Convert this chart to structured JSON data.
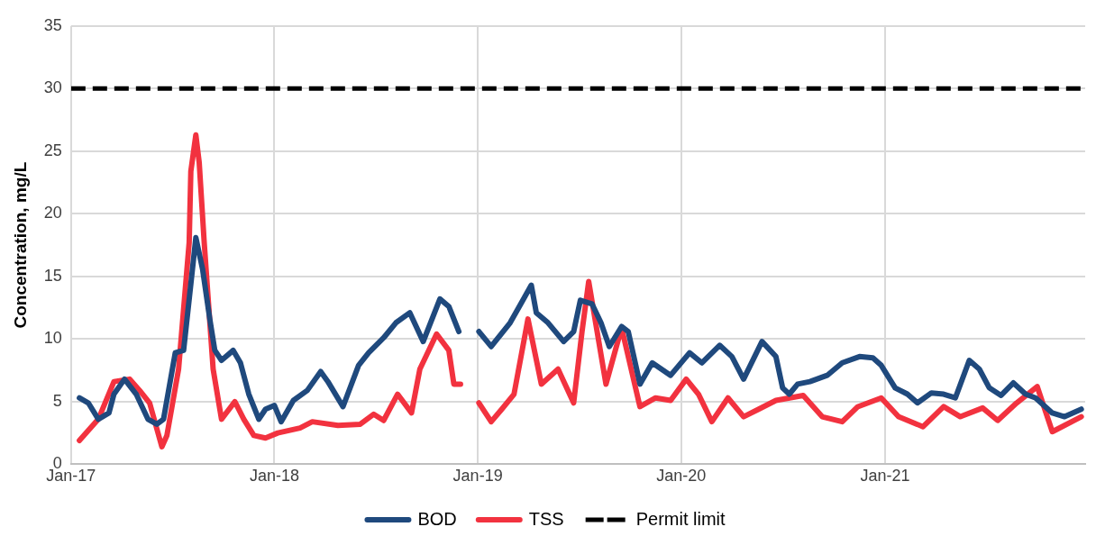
{
  "chart_data": {
    "type": "line",
    "ylabel": "Concentration, mg/L",
    "ylim": [
      0,
      35
    ],
    "yticks": [
      0,
      5,
      10,
      15,
      20,
      25,
      30,
      35
    ],
    "xlim": [
      "2017-01-01",
      "2021-12-26"
    ],
    "xticks": [
      {
        "value": "2017-01-01",
        "label": "Jan-17"
      },
      {
        "value": "2018-01-01",
        "label": "Jan-18"
      },
      {
        "value": "2019-01-01",
        "label": "Jan-19"
      },
      {
        "value": "2020-01-01",
        "label": "Jan-20"
      },
      {
        "value": "2021-01-01",
        "label": "Jan-21"
      }
    ],
    "grid": true,
    "legend": "bottom",
    "series": [
      {
        "name": "BOD",
        "color": "#1f497d",
        "x": [
          "2017-01-16",
          "2017-02-01",
          "2017-02-19",
          "2017-03-10",
          "2017-03-19",
          "2017-04-07",
          "2017-04-28",
          "2017-05-19",
          "2017-06-04",
          "2017-06-16",
          "2017-07-07",
          "2017-07-22",
          "2017-08-04",
          "2017-08-13",
          "2017-08-25",
          "2017-09-07",
          "2017-09-16",
          "2017-09-28",
          "2017-10-19",
          "2017-11-01",
          "2017-11-16",
          "2017-12-04",
          "2017-12-16",
          "2018-01-01",
          "2018-01-13",
          "2018-02-04",
          "2018-03-01",
          "2018-03-25",
          "2018-04-07",
          "2018-05-04",
          "2018-06-01",
          "2018-06-19",
          "2018-07-16",
          "2018-08-07",
          "2018-09-01",
          "2018-09-25",
          "2018-10-25",
          "2018-11-10",
          "2018-11-28",
          "2018-12-15",
          "2019-01-03",
          "2019-01-25",
          "2019-02-28",
          "2019-03-19",
          "2019-04-07",
          "2019-04-16",
          "2019-05-07",
          "2019-06-04",
          "2019-06-22",
          "2019-07-04",
          "2019-07-25",
          "2019-08-10",
          "2019-08-25",
          "2019-09-16",
          "2019-09-28",
          "2019-10-19",
          "2019-11-10",
          "2019-12-13",
          "2020-01-16",
          "2020-02-07",
          "2020-03-10",
          "2020-04-01",
          "2020-04-22",
          "2020-05-25",
          "2020-06-19",
          "2020-07-01",
          "2020-07-13",
          "2020-07-28",
          "2020-08-19",
          "2020-09-19",
          "2020-10-16",
          "2020-11-16",
          "2020-12-10",
          "2020-12-25",
          "2021-01-19",
          "2021-02-10",
          "2021-02-28",
          "2021-03-25",
          "2021-04-16",
          "2021-05-07",
          "2021-06-01",
          "2021-06-19",
          "2021-07-07",
          "2021-07-28",
          "2021-08-19",
          "2021-09-10",
          "2021-09-28",
          "2021-10-28",
          "2021-11-19",
          "2021-12-19"
        ],
        "values": [
          5.3,
          4.9,
          3.6,
          4.1,
          5.6,
          6.8,
          5.6,
          3.6,
          3.2,
          3.6,
          8.9,
          9.1,
          14.4,
          18.1,
          15.6,
          11.6,
          9.1,
          8.3,
          9.1,
          8.1,
          5.6,
          3.6,
          4.4,
          4.7,
          3.4,
          5.1,
          5.9,
          7.4,
          6.6,
          4.6,
          7.9,
          8.9,
          10.1,
          11.3,
          12.1,
          9.8,
          13.2,
          12.6,
          10.6,
          null,
          10.6,
          9.4,
          11.3,
          12.8,
          14.3,
          12.1,
          11.3,
          9.8,
          10.6,
          13.1,
          12.8,
          11.3,
          9.4,
          11.0,
          10.6,
          6.4,
          8.1,
          7.1,
          8.9,
          8.1,
          9.5,
          8.6,
          6.8,
          9.8,
          8.6,
          6.1,
          5.6,
          6.4,
          6.6,
          7.1,
          8.1,
          8.6,
          8.5,
          7.9,
          6.1,
          5.6,
          4.9,
          5.7,
          5.6,
          5.3,
          8.3,
          7.6,
          6.1,
          5.5,
          6.5,
          5.6,
          5.3,
          4.1,
          3.8,
          4.4
        ]
      },
      {
        "name": "TSS",
        "color": "#f2323f",
        "x": [
          "2017-01-16",
          "2017-02-19",
          "2017-03-19",
          "2017-04-16",
          "2017-05-04",
          "2017-05-22",
          "2017-06-13",
          "2017-06-22",
          "2017-07-13",
          "2017-08-01",
          "2017-08-04",
          "2017-08-13",
          "2017-08-19",
          "2017-08-28",
          "2017-09-13",
          "2017-09-28",
          "2017-10-22",
          "2017-11-07",
          "2017-11-25",
          "2017-12-16",
          "2018-01-07",
          "2018-02-16",
          "2018-03-10",
          "2018-04-25",
          "2018-06-04",
          "2018-06-28",
          "2018-07-16",
          "2018-08-10",
          "2018-09-04",
          "2018-09-19",
          "2018-10-19",
          "2018-11-10",
          "2018-11-19",
          "2018-12-01",
          "2018-12-15",
          "2019-01-03",
          "2019-01-25",
          "2019-02-13",
          "2019-03-07",
          "2019-04-01",
          "2019-04-25",
          "2019-05-25",
          "2019-06-22",
          "2019-07-07",
          "2019-07-19",
          "2019-08-19",
          "2019-09-16",
          "2019-10-19",
          "2019-11-16",
          "2019-12-13",
          "2020-01-10",
          "2020-02-01",
          "2020-02-25",
          "2020-03-25",
          "2020-04-22",
          "2020-05-19",
          "2020-06-19",
          "2020-08-07",
          "2020-09-10",
          "2020-10-16",
          "2020-11-13",
          "2020-12-25",
          "2021-01-25",
          "2021-03-10",
          "2021-04-16",
          "2021-05-16",
          "2021-06-25",
          "2021-07-22",
          "2021-08-25",
          "2021-10-01",
          "2021-10-28",
          "2021-12-19"
        ],
        "values": [
          1.9,
          3.6,
          6.6,
          6.8,
          5.9,
          4.9,
          1.4,
          2.3,
          7.6,
          17.7,
          23.4,
          26.3,
          24.1,
          17.7,
          7.6,
          3.6,
          5.0,
          3.6,
          2.3,
          2.1,
          2.5,
          2.9,
          3.4,
          3.1,
          3.2,
          4.0,
          3.5,
          5.6,
          4.1,
          7.6,
          10.4,
          9.1,
          6.4,
          6.4,
          null,
          4.9,
          3.4,
          4.4,
          5.6,
          11.6,
          6.4,
          7.6,
          4.9,
          10.6,
          14.6,
          6.4,
          10.9,
          4.6,
          5.3,
          5.1,
          6.8,
          5.6,
          3.4,
          5.3,
          3.8,
          4.4,
          5.1,
          5.5,
          3.8,
          3.4,
          4.6,
          5.3,
          3.8,
          3.0,
          4.6,
          3.8,
          4.5,
          3.5,
          4.9,
          6.2,
          2.6,
          3.8
        ]
      }
    ],
    "ref_lines": [
      {
        "axis": "y",
        "value": 30,
        "label": "Permit limit",
        "color": "#000000",
        "line_style": "dashed"
      }
    ]
  }
}
